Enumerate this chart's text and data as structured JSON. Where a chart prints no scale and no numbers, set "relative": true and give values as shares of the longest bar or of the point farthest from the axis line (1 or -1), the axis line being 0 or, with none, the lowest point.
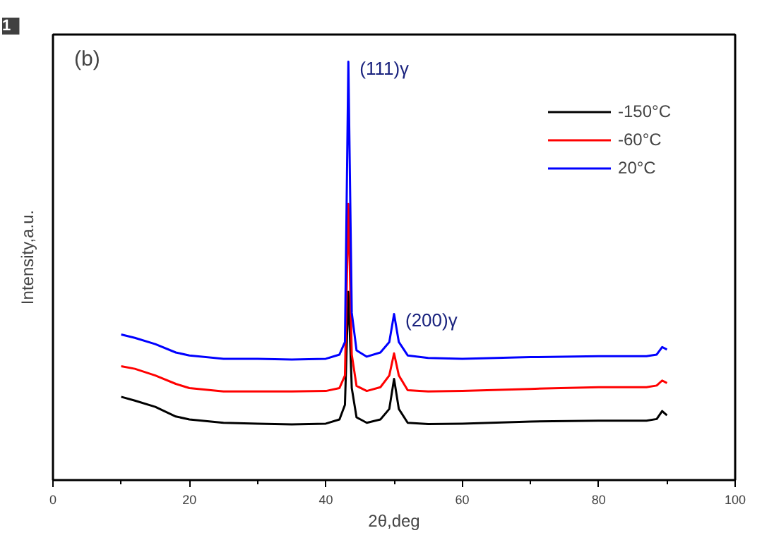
{
  "chart_data": {
    "type": "line",
    "relative": true,
    "xlabel": "2θ,deg",
    "ylabel": "Intensity,a.u.",
    "x": [
      10,
      12,
      15,
      18,
      20,
      25,
      30,
      35,
      40,
      42,
      42.8,
      43.3,
      43.8,
      44.5,
      46,
      48,
      49.3,
      50,
      50.7,
      52,
      55,
      60,
      70,
      80,
      87,
      88.5,
      89.3,
      90
    ],
    "xlim": [
      0,
      100
    ],
    "xticks": [
      0,
      20,
      40,
      60,
      80,
      100
    ],
    "series": [
      {
        "name": "-150°C",
        "color": "#000000",
        "values": [
          0.199,
          0.19,
          0.175,
          0.152,
          0.145,
          0.137,
          0.135,
          0.133,
          0.135,
          0.145,
          0.18,
          0.45,
          0.22,
          0.15,
          0.137,
          0.145,
          0.17,
          0.242,
          0.17,
          0.137,
          0.134,
          0.135,
          0.14,
          0.142,
          0.142,
          0.146,
          0.165,
          0.155
        ]
      },
      {
        "name": "-60°C",
        "color": "#ff0000",
        "values": [
          0.272,
          0.266,
          0.25,
          0.23,
          0.22,
          0.212,
          0.212,
          0.212,
          0.213,
          0.22,
          0.25,
          0.66,
          0.3,
          0.225,
          0.213,
          0.222,
          0.25,
          0.303,
          0.25,
          0.215,
          0.212,
          0.213,
          0.218,
          0.222,
          0.222,
          0.226,
          0.238,
          0.232
        ]
      },
      {
        "name": "20°C",
        "color": "#0000ff",
        "values": [
          0.348,
          0.34,
          0.325,
          0.305,
          0.298,
          0.29,
          0.29,
          0.288,
          0.29,
          0.3,
          0.33,
          1.0,
          0.4,
          0.31,
          0.295,
          0.305,
          0.33,
          0.397,
          0.33,
          0.298,
          0.292,
          0.29,
          0.294,
          0.296,
          0.296,
          0.3,
          0.318,
          0.312
        ]
      }
    ],
    "annotations": [
      "1",
      "(b)",
      {
        "text": "(111)γ",
        "x": 43.3,
        "y": 1.0
      },
      {
        "text": "(200)γ",
        "x": 50,
        "y": 0.397
      }
    ],
    "legend": "top right",
    "grid": false,
    "tick_labels": "x"
  }
}
